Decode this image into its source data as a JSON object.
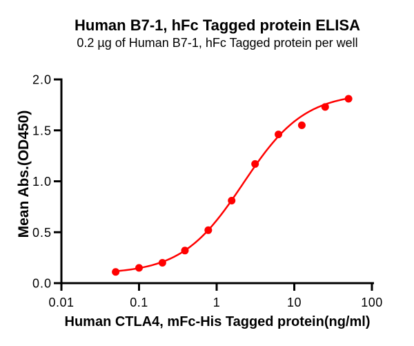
{
  "chart_data": {
    "type": "scatter",
    "title": "Human B7-1, hFc Tagged protein ELISA",
    "subtitle": "0.2 µg of Human B7-1, hFc Tagged protein per well",
    "xlabel": "Human CTLA4, mFc-His Tagged protein(ng/ml)",
    "ylabel": "Mean Abs.(OD450)",
    "x_scale": "log10",
    "xlim": [
      0.01,
      100
    ],
    "ylim": [
      0.0,
      2.0
    ],
    "x_tick_values": [
      0.01,
      0.1,
      1,
      10,
      100
    ],
    "x_tick_labels": [
      "0.01",
      "0.1",
      "1",
      "10",
      "100"
    ],
    "y_tick_values": [
      0.0,
      0.5,
      1.0,
      1.5,
      2.0
    ],
    "y_tick_labels": [
      "0.0",
      "0.5",
      "1.0",
      "1.5",
      "2.0"
    ],
    "grid": false,
    "legend": "none",
    "marker_color": "#FF0000",
    "line_color": "#FF0000",
    "axis_color": "#000000",
    "x": [
      0.05,
      0.1,
      0.2,
      0.39,
      0.78,
      1.56,
      3.125,
      6.25,
      12.5,
      25,
      50
    ],
    "y": [
      0.11,
      0.15,
      0.2,
      0.32,
      0.52,
      0.81,
      1.17,
      1.46,
      1.55,
      1.73,
      1.81
    ],
    "fit_curve": {
      "model": "4PL",
      "bottom": 0.09,
      "top": 1.87,
      "ec50": 2.2,
      "hill": 1.1
    }
  }
}
